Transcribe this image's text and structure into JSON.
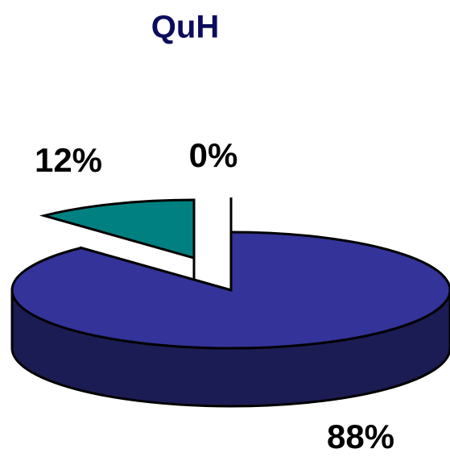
{
  "chart_data": {
    "type": "pie",
    "title": "QuH",
    "values": [
      88,
      12,
      0
    ],
    "value_labels": [
      "88%",
      "12%",
      "0%"
    ],
    "colors": [
      "#333399",
      "#008080",
      "#ffffff"
    ]
  }
}
